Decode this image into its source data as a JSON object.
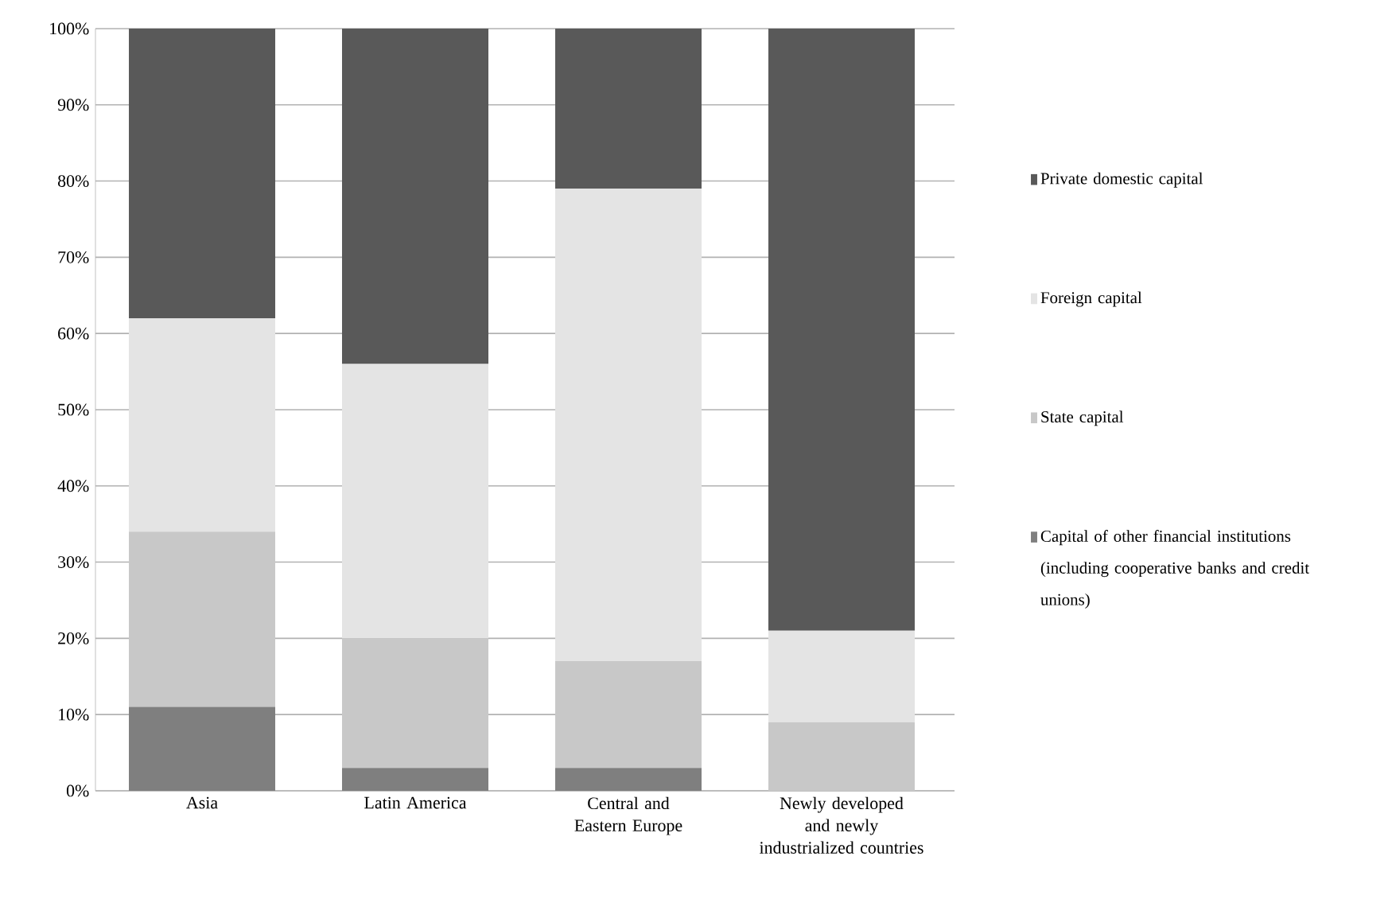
{
  "chart_data": {
    "type": "bar",
    "stacked": true,
    "categories": [
      "Asia",
      "Latin America",
      "Central and Eastern Europe",
      "Newly developed and newly industrialized countries"
    ],
    "series": [
      {
        "name": "Capital of other financial institutions (including cooperative banks and credit unions)",
        "color": "#7f7f7f",
        "values": [
          11,
          3,
          3,
          0
        ]
      },
      {
        "name": "State capital",
        "color": "#c8c8c8",
        "values": [
          23,
          17,
          14,
          9
        ]
      },
      {
        "name": "Foreign capital",
        "color": "#e4e4e4",
        "values": [
          28,
          36,
          62,
          12
        ]
      },
      {
        "name": "Private domestic capital",
        "color": "#595959",
        "values": [
          38,
          44,
          21,
          79
        ]
      }
    ],
    "ylim": [
      0,
      100
    ],
    "yticks": [
      {
        "value": 0,
        "label": "0%"
      },
      {
        "value": 10,
        "label": "10%"
      },
      {
        "value": 20,
        "label": "20%"
      },
      {
        "value": 30,
        "label": "30%"
      },
      {
        "value": 40,
        "label": "40%"
      },
      {
        "value": 50,
        "label": "50%"
      },
      {
        "value": 60,
        "label": "60%"
      },
      {
        "value": 70,
        "label": "70%"
      },
      {
        "value": 80,
        "label": "80%"
      },
      {
        "value": 90,
        "label": "90%"
      },
      {
        "value": 100,
        "label": "100%"
      }
    ],
    "grid": "y",
    "legend": "right"
  }
}
